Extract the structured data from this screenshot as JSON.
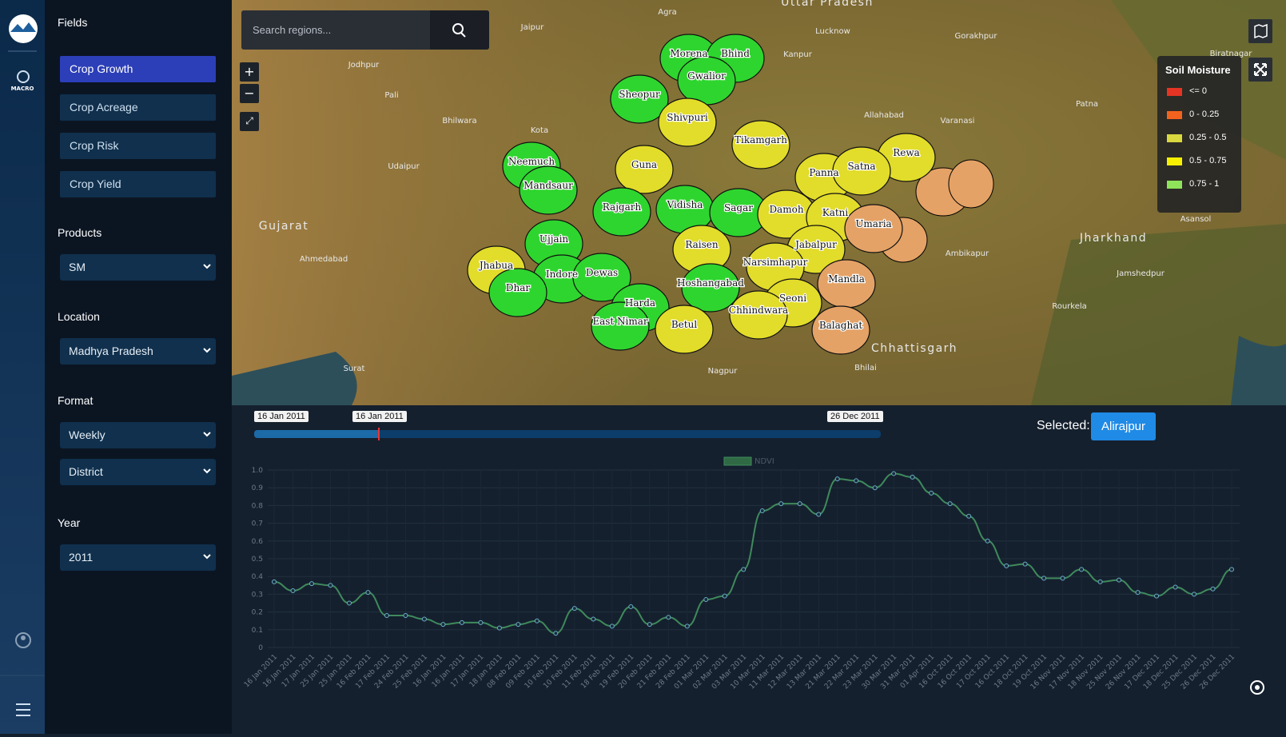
{
  "sidebar": {
    "rail": {
      "label": "MACRO"
    },
    "fields": {
      "heading": "Fields",
      "items": [
        "Crop Growth",
        "Crop Acreage",
        "Crop Risk",
        "Crop Yield"
      ]
    },
    "products": {
      "heading": "Products",
      "value": "SM"
    },
    "location": {
      "heading": "Location",
      "value": "Madhya Pradesh"
    },
    "format": {
      "heading": "Format",
      "value": "Weekly",
      "level": "District"
    },
    "year": {
      "heading": "Year",
      "value": "2011"
    }
  },
  "search": {
    "placeholder": "Search regions..."
  },
  "map": {
    "legend": {
      "title": "Soil Moisture",
      "items": [
        {
          "label": "<= 0",
          "color": "#e53424"
        },
        {
          "label": "0 - 0.25",
          "color": "#f2621f"
        },
        {
          "label": "0.25 - 0.5",
          "color": "#d9d83e"
        },
        {
          "label": "0.5 - 0.75",
          "color": "#f7ef00"
        },
        {
          "label": "0.75 - 1",
          "color": "#8fe35a"
        }
      ]
    },
    "districts": [
      {
        "name": "Morena",
        "color": "#2ed52e"
      },
      {
        "name": "Bhind",
        "color": "#2ed52e"
      },
      {
        "name": "Gwalior",
        "color": "#2ed52e"
      },
      {
        "name": "Sheopur",
        "color": "#2ed52e"
      },
      {
        "name": "Shivpuri",
        "color": "#e2dc2a"
      },
      {
        "name": "Tikamgarh",
        "color": "#e2dc2a"
      },
      {
        "name": "Neemuch",
        "color": "#2ed52e"
      },
      {
        "name": "Guna",
        "color": "#e2dc2a"
      },
      {
        "name": "Rewa",
        "color": "#e2dc2a"
      },
      {
        "name": "Panna",
        "color": "#e2dc2a"
      },
      {
        "name": "Satna",
        "color": "#e2dc2a"
      },
      {
        "name": "Mandsaur",
        "color": "#2ed52e"
      },
      {
        "name": "Rajgarh",
        "color": "#2ed52e"
      },
      {
        "name": "Vidisha",
        "color": "#2ed52e"
      },
      {
        "name": "Sagar",
        "color": "#2ed52e"
      },
      {
        "name": "Damoh",
        "color": "#e2dc2a"
      },
      {
        "name": "Katni",
        "color": "#e2dc2a"
      },
      {
        "name": "Umaria",
        "color": "#e4a266"
      },
      {
        "name": "Ujjain",
        "color": "#2ed52e"
      },
      {
        "name": "Raisen",
        "color": "#e2dc2a"
      },
      {
        "name": "Jabalpur",
        "color": "#e2dc2a"
      },
      {
        "name": "Jhabua",
        "color": "#e2dc2a"
      },
      {
        "name": "Narsimhapur",
        "color": "#e2dc2a"
      },
      {
        "name": "Indore",
        "color": "#2ed52e"
      },
      {
        "name": "Dewas",
        "color": "#2ed52e"
      },
      {
        "name": "Mandla",
        "color": "#e4a266"
      },
      {
        "name": "Dhar",
        "color": "#2ed52e"
      },
      {
        "name": "Hoshangabad",
        "color": "#2ed52e"
      },
      {
        "name": "Seoni",
        "color": "#e2dc2a"
      },
      {
        "name": "Harda",
        "color": "#2ed52e"
      },
      {
        "name": "Chhindwara",
        "color": "#e2dc2a"
      },
      {
        "name": "East Nimar",
        "color": "#2ed52e"
      },
      {
        "name": "Betul",
        "color": "#e2dc2a"
      },
      {
        "name": "Balaghat",
        "color": "#e4a266"
      }
    ],
    "places": [
      "Agra",
      "Uttar Pradesh",
      "Lucknow",
      "Kanpur",
      "Gorakhpur",
      "Jaipur",
      "Jodhpur",
      "Pali",
      "Bhilwara",
      "Kota",
      "Udaipur",
      "Gujarat",
      "Ahmedabad",
      "Allahabad",
      "Varanasi",
      "Patna",
      "Jharkhand",
      "Asansol",
      "Ambikapur",
      "Jamshedpur",
      "Rourkela",
      "Chhattisgarh",
      "Bhilai",
      "Nagpur",
      "Surat",
      "Biratnagar"
    ]
  },
  "timeline": {
    "start": "16 Jan 2011",
    "current": "16 Jan 2011",
    "end": "26 Dec 2011",
    "selected_label": "Selected:",
    "selected": "Alirajpur"
  },
  "chart_data": {
    "type": "line",
    "categories": [
      "16 Jan 2011",
      "16 Jan 2011",
      "17 Jan 2011",
      "25 Jan 2011",
      "25 Jan 2011",
      "16 Feb 2011",
      "17 Feb 2011",
      "24 Feb 2011",
      "25 Feb 2011",
      "16 Jan 2011",
      "16 Jan 2011",
      "17 Jan 2011",
      "18 Jan 2011",
      "08 Feb 2011",
      "09 Feb 2011",
      "10 Feb 2011",
      "10 Feb 2011",
      "11 Feb 2011",
      "18 Feb 2011",
      "19 Feb 2011",
      "20 Feb 2011",
      "21 Feb 2011",
      "28 Feb 2011",
      "01 Mar 2011",
      "02 Mar 2011",
      "03 Mar 2011",
      "10 Mar 2011",
      "11 Mar 2011",
      "12 Mar 2011",
      "13 Mar 2011",
      "21 Mar 2011",
      "22 Mar 2011",
      "23 Mar 2011",
      "30 Mar 2011",
      "31 Mar 2011",
      "01 Apr 2011",
      "16 Oct 2011",
      "16 Oct 2011",
      "17 Oct 2011",
      "16 Oct 2011",
      "18 Oct 2011",
      "19 Oct 2011",
      "16 Nov 2011",
      "17 Nov 2011",
      "18 Nov 2011",
      "25 Nov 2011",
      "26 Nov 2011",
      "17 Dec 2011",
      "18 Dec 2011",
      "25 Dec 2011",
      "26 Dec 2011",
      "26 Dec 2011"
    ],
    "series": [
      {
        "name": "NDVI",
        "color": "#3f8a5c",
        "values": [
          0.37,
          0.32,
          0.36,
          0.35,
          0.25,
          0.31,
          0.18,
          0.18,
          0.16,
          0.13,
          0.14,
          0.14,
          0.11,
          0.13,
          0.15,
          0.08,
          0.22,
          0.16,
          0.12,
          0.23,
          0.13,
          0.17,
          0.12,
          0.27,
          0.29,
          0.44,
          0.77,
          0.81,
          0.81,
          0.75,
          0.95,
          0.94,
          0.9,
          0.98,
          0.96,
          0.87,
          0.81,
          0.74,
          0.6,
          0.46,
          0.47,
          0.39,
          0.39,
          0.44,
          0.37,
          0.38,
          0.31,
          0.29,
          0.34,
          0.3,
          0.33,
          0.44
        ]
      }
    ],
    "ylim": [
      0,
      1
    ],
    "yticks": [
      0,
      0.1,
      0.2,
      0.3,
      0.4,
      0.5,
      0.6,
      0.7,
      0.8,
      0.9,
      {
        "value": 1,
        "label": "1.0"
      }
    ],
    "grid": true,
    "legend": "top"
  }
}
